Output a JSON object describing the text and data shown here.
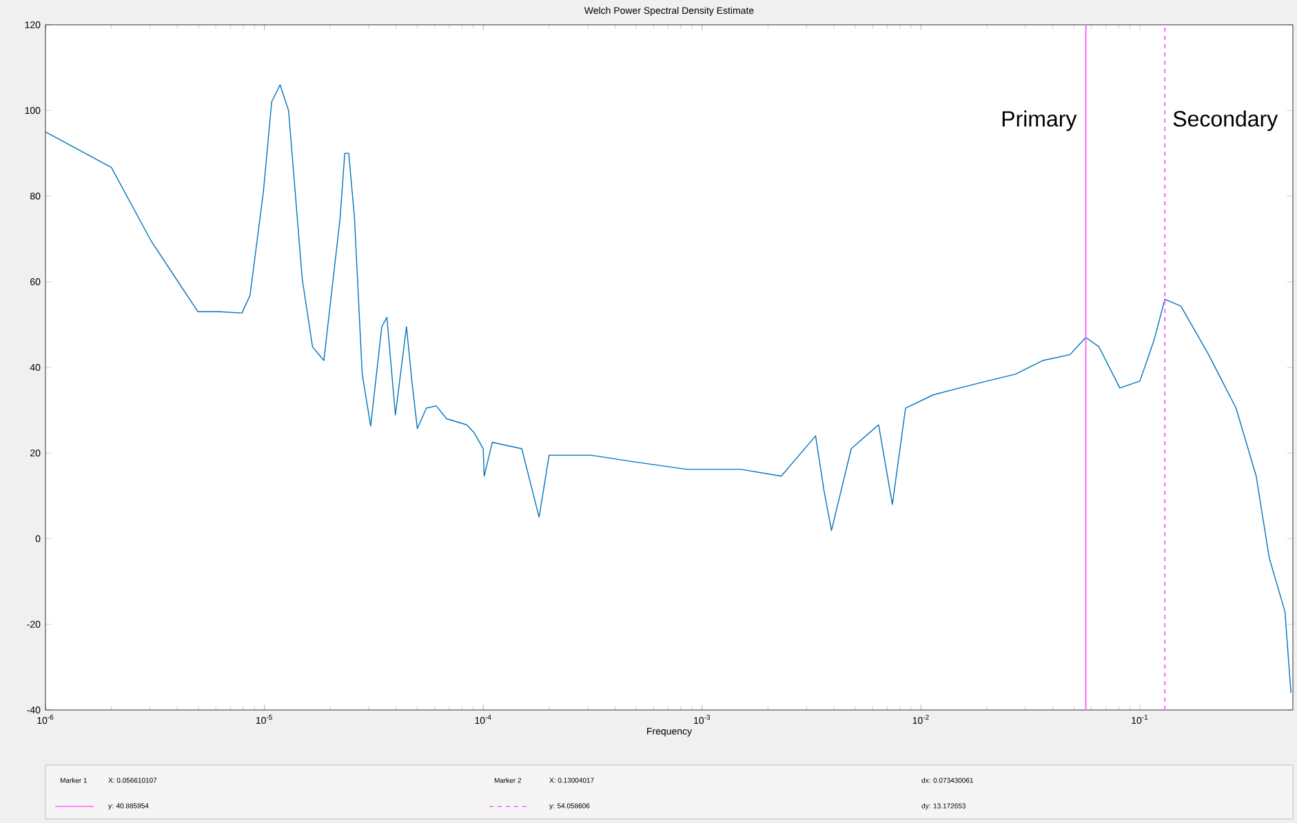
{
  "chart_data": {
    "type": "line",
    "title": "Welch Power Spectral Density Estimate",
    "xlabel": "Frequency",
    "log": "x",
    "xlim": [
      1e-06,
      0.5
    ],
    "ylim": [
      -40,
      120
    ],
    "xticks": [
      {
        "value": 1e-06,
        "label": "10$^{-6}$"
      },
      {
        "value": 1e-05,
        "label": "10$^{-5}$"
      },
      {
        "value": 0.0001,
        "label": "10$^{-4}$"
      },
      {
        "value": 0.001,
        "label": "10$^{-3}$"
      },
      {
        "value": 0.01,
        "label": "10$^{-2}$"
      },
      {
        "value": 0.1,
        "label": "10$^{-1}$"
      }
    ],
    "yticks": [
      -40,
      -20,
      0,
      20,
      40,
      60,
      80,
      100,
      120
    ],
    "series": [
      {
        "color": "#0072bd",
        "x": [
          1e-06,
          2e-06,
          3.04e-06,
          4.97e-06,
          6.25e-06,
          7.9e-06,
          8.6e-06,
          9.9e-06,
          1.08e-05,
          1.18e-05,
          1.29e-05,
          1.49e-05,
          1.66e-05,
          1.87e-05,
          2.22e-05,
          2.33e-05,
          2.43e-05,
          2.58e-05,
          2.8e-05,
          3.06e-05,
          3.44e-05,
          3.63e-05,
          3.97e-05,
          4.46e-05,
          4.72e-05,
          5e-05,
          5.5e-05,
          6.1e-05,
          6.8e-05,
          8.4e-05,
          9.1e-05,
          0.0001,
          0.000101,
          0.00011,
          0.00015,
          0.00018,
          0.0002,
          0.00031,
          0.00048,
          0.00085,
          0.0015,
          0.0023,
          0.0033,
          0.0036,
          0.0039,
          0.0048,
          0.0064,
          0.0074,
          0.0085,
          0.0114,
          0.015,
          0.02,
          0.027,
          0.036,
          0.048,
          0.0566,
          0.065,
          0.081,
          0.1,
          0.116,
          0.13,
          0.154,
          0.206,
          0.275,
          0.34,
          0.39,
          0.46,
          0.49
        ],
        "values": [
          95,
          86.7,
          69.5,
          53,
          53,
          52.7,
          56.8,
          81,
          102,
          106,
          100,
          60.6,
          44.8,
          41.6,
          75,
          90,
          90,
          75,
          38.4,
          26.3,
          49.5,
          51.7,
          28.9,
          49.5,
          36.8,
          25.7,
          30.5,
          31,
          28,
          26.6,
          24.7,
          21,
          14.6,
          22.5,
          21,
          5,
          19.5,
          19.5,
          18,
          16.2,
          16.2,
          14.6,
          24,
          11.4,
          1.9,
          21,
          26.6,
          8,
          30.5,
          33.6,
          35.2,
          36.8,
          38.4,
          41.6,
          43,
          47,
          44.8,
          35.2,
          36.8,
          46.3,
          55.9,
          54.3,
          43,
          30.5,
          14.6,
          -4.5,
          -17,
          -36
        ]
      }
    ],
    "ref_lines": [
      {
        "axis": "x",
        "value": 0.056610107,
        "label": "Primary",
        "color": "#ff66ff",
        "line_style": "solid"
      },
      {
        "axis": "x",
        "value": 0.13004017,
        "label": "Secondary",
        "color": "#ff66ff",
        "line_style": "dashed"
      }
    ],
    "annotations": [
      "Marker 1",
      "X: 0.056610107",
      "y: 40.885954",
      "Marker 2",
      "X: 0.13004017",
      "y: 54.058606",
      "dx: 0.073430061",
      "dy: 13.172653"
    ]
  }
}
